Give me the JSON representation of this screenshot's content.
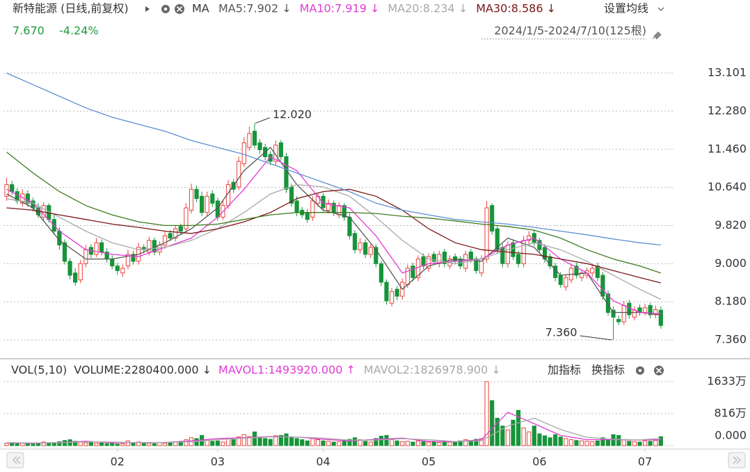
{
  "header": {
    "title": "新特能源 (日线,前复权)",
    "ma_label": "MA",
    "settings": "设置均线",
    "price": "7.670",
    "change": "-4.24%",
    "range": "2024/1/5-2024/7/10(125根)"
  },
  "chart_data": [
    {
      "type": "candlestick",
      "open": [
        10.45,
        10.7,
        10.55,
        10.3,
        10.5,
        10.35,
        10.2,
        10.0,
        10.25,
        9.95,
        9.7,
        9.45,
        9.05,
        8.8,
        8.65,
        9.0,
        9.35,
        9.2,
        9.45,
        9.25,
        9.1,
        8.95,
        8.8,
        8.95,
        9.2,
        9.05,
        9.35,
        9.25,
        9.5,
        9.25,
        9.4,
        9.65,
        9.55,
        9.8,
        9.75,
        10.15,
        10.6,
        10.45,
        10.1,
        10.5,
        10.35,
        10.0,
        10.25,
        10.75,
        10.65,
        11.15,
        11.5,
        11.85,
        11.6,
        11.5,
        11.35,
        11.2,
        11.6,
        11.3,
        10.65,
        10.35,
        10.15,
        10.1,
        10.0,
        10.3,
        10.45,
        10.15,
        10.3,
        10.05,
        10.25,
        10.0,
        9.65,
        9.3,
        9.45,
        9.2,
        9.35,
        9.0,
        8.6,
        8.15,
        8.45,
        8.3,
        8.55,
        8.95,
        8.7,
        9.15,
        8.9,
        9.2,
        9.0,
        9.25,
        8.95,
        9.15,
        9.1,
        8.9,
        9.25,
        9.1,
        8.8,
        9.1,
        10.25,
        9.75,
        9.35,
        9.0,
        9.45,
        9.2,
        9.0,
        9.5,
        9.65,
        9.5,
        9.35,
        9.15,
        8.95,
        8.75,
        8.5,
        8.65,
        8.95,
        8.7,
        8.75,
        8.8,
        8.95,
        8.75,
        8.35,
        8.0,
        7.8,
        7.75,
        8.15,
        7.85,
        8.05,
        7.95,
        8.1,
        7.9,
        8.0
      ],
      "high": [
        10.85,
        10.78,
        10.62,
        10.6,
        10.58,
        10.42,
        10.3,
        10.32,
        10.3,
        10.05,
        9.78,
        9.52,
        9.12,
        8.9,
        9.08,
        9.4,
        9.42,
        9.55,
        9.52,
        9.33,
        9.18,
        9.02,
        8.98,
        9.3,
        9.28,
        9.45,
        9.42,
        9.58,
        9.56,
        9.48,
        9.7,
        9.72,
        9.82,
        9.86,
        10.3,
        10.72,
        10.68,
        10.55,
        10.55,
        10.58,
        10.42,
        10.35,
        10.8,
        10.82,
        11.3,
        11.72,
        11.95,
        12.02,
        11.68,
        11.58,
        11.42,
        11.65,
        11.66,
        11.38,
        10.72,
        10.45,
        10.22,
        10.18,
        10.45,
        10.52,
        10.52,
        10.38,
        10.36,
        10.32,
        10.3,
        10.08,
        9.72,
        9.55,
        9.52,
        9.42,
        9.42,
        9.06,
        8.66,
        8.48,
        8.52,
        8.68,
        8.98,
        9.02,
        9.18,
        9.22,
        9.22,
        9.26,
        9.28,
        9.32,
        9.18,
        9.22,
        9.16,
        9.28,
        9.32,
        9.16,
        9.18,
        10.35,
        10.3,
        9.82,
        9.42,
        9.48,
        9.52,
        9.28,
        9.6,
        9.7,
        9.72,
        9.56,
        9.42,
        9.22,
        9.02,
        8.82,
        8.78,
        8.98,
        9.02,
        8.88,
        8.92,
        8.98,
        9.02,
        8.82,
        8.42,
        8.08,
        7.88,
        8.2,
        8.22,
        8.08,
        8.12,
        8.14,
        8.16,
        8.1,
        8.08
      ],
      "low": [
        10.35,
        10.48,
        10.28,
        10.22,
        10.22,
        10.12,
        9.98,
        9.92,
        9.88,
        9.62,
        9.3,
        8.98,
        8.66,
        8.52,
        8.58,
        8.92,
        9.12,
        9.14,
        9.18,
        9.02,
        8.88,
        8.76,
        8.72,
        8.88,
        8.98,
        8.98,
        9.22,
        9.18,
        9.18,
        9.18,
        9.32,
        9.48,
        9.48,
        9.62,
        9.68,
        10.08,
        10.32,
        10.02,
        10.02,
        10.22,
        9.92,
        9.94,
        10.18,
        10.52,
        10.58,
        11.08,
        11.42,
        11.48,
        11.36,
        11.22,
        11.12,
        11.12,
        11.22,
        10.52,
        10.22,
        10.02,
        9.98,
        9.88,
        9.92,
        10.22,
        10.12,
        10.08,
        10.02,
        9.98,
        9.92,
        9.52,
        9.22,
        9.22,
        9.12,
        9.12,
        8.92,
        8.52,
        8.12,
        8.08,
        8.22,
        8.22,
        8.48,
        8.62,
        8.62,
        8.88,
        8.82,
        8.98,
        8.92,
        8.92,
        8.88,
        8.98,
        8.88,
        8.82,
        9.02,
        8.78,
        8.72,
        9.02,
        9.62,
        9.22,
        8.92,
        8.92,
        9.08,
        8.92,
        8.92,
        9.42,
        9.38,
        9.22,
        9.02,
        8.88,
        8.62,
        8.48,
        8.42,
        8.58,
        8.68,
        8.62,
        8.68,
        8.72,
        8.62,
        8.22,
        7.88,
        7.36,
        7.68,
        7.68,
        7.82,
        7.78,
        7.88,
        7.88,
        7.82,
        7.82,
        7.6
      ],
      "close": [
        10.7,
        10.55,
        10.35,
        10.5,
        10.3,
        10.2,
        10.05,
        10.25,
        9.95,
        9.7,
        9.4,
        9.05,
        8.75,
        8.6,
        9.0,
        9.3,
        9.2,
        9.45,
        9.25,
        9.1,
        8.95,
        8.85,
        8.9,
        9.2,
        9.05,
        9.35,
        9.3,
        9.5,
        9.25,
        9.4,
        9.6,
        9.55,
        9.75,
        9.7,
        10.2,
        10.6,
        10.4,
        10.1,
        10.45,
        10.3,
        10.0,
        10.25,
        10.7,
        10.6,
        11.2,
        11.6,
        11.8,
        11.55,
        11.45,
        11.3,
        11.2,
        11.55,
        11.3,
        10.6,
        10.3,
        10.1,
        10.05,
        9.95,
        10.35,
        10.45,
        10.2,
        10.3,
        10.1,
        10.25,
        10.0,
        9.6,
        9.3,
        9.45,
        9.2,
        9.35,
        9.0,
        8.6,
        8.2,
        8.4,
        8.3,
        8.6,
        8.9,
        8.7,
        9.1,
        8.95,
        9.15,
        9.05,
        9.2,
        9.0,
        9.1,
        9.05,
        8.95,
        9.2,
        9.1,
        8.85,
        9.1,
        10.2,
        9.7,
        9.3,
        9.0,
        9.4,
        9.15,
        9.0,
        9.5,
        9.6,
        9.45,
        9.3,
        9.1,
        8.95,
        8.7,
        8.55,
        8.7,
        8.9,
        8.75,
        8.8,
        8.85,
        8.9,
        8.7,
        8.3,
        7.95,
        7.85,
        7.75,
        8.1,
        7.9,
        8.0,
        7.95,
        8.05,
        7.9,
        8.01,
        7.67
      ],
      "up_color": "#e8413c",
      "down_color": "#17943a",
      "xlim": [
        -0.6,
        126
      ],
      "xticks": [
        {
          "value": 21,
          "label": "02"
        },
        {
          "value": 40,
          "label": "03"
        },
        {
          "value": 60,
          "label": "04"
        },
        {
          "value": 80,
          "label": "05"
        },
        {
          "value": 101,
          "label": "06"
        },
        {
          "value": 121,
          "label": "07"
        }
      ],
      "ylim": [
        7.12,
        13.55
      ],
      "yticks": [
        {
          "value": 7.36,
          "label": "7.360"
        },
        {
          "value": 8.18,
          "label": "8.180"
        },
        {
          "value": 9,
          "label": "9.000"
        },
        {
          "value": 9.82,
          "label": "9.820"
        },
        {
          "value": 10.64,
          "label": "10.640"
        },
        {
          "value": 11.46,
          "label": "11.460"
        },
        {
          "value": 12.28,
          "label": "12.280"
        },
        13.101
      ],
      "grid": true,
      "series": [
        {
          "name": "MA5:7.902 ↓",
          "color": "#555555",
          "x": [
            0,
            5,
            10,
            15,
            20,
            25,
            30,
            35,
            40,
            45,
            50,
            55,
            60,
            65,
            70,
            75,
            80,
            85,
            90,
            95,
            100,
            105,
            110,
            115,
            120,
            124
          ],
          "values": [
            10.5,
            10.2,
            9.5,
            9.1,
            9.1,
            9.2,
            9.45,
            9.75,
            10.2,
            11.0,
            11.5,
            10.7,
            10.15,
            10.0,
            9.3,
            8.45,
            8.95,
            9.1,
            9.05,
            9.55,
            9.35,
            8.75,
            8.8,
            7.95,
            7.95,
            7.902
          ]
        },
        {
          "name": "MA10:7.919 ↓",
          "color": "#e23ad6",
          "x": [
            0,
            5,
            10,
            15,
            20,
            25,
            30,
            35,
            40,
            45,
            50,
            55,
            60,
            65,
            70,
            75,
            80,
            85,
            90,
            95,
            100,
            105,
            110,
            115,
            120,
            124
          ],
          "values": [
            10.6,
            10.3,
            9.7,
            9.3,
            9.2,
            9.15,
            9.35,
            9.55,
            10.0,
            10.6,
            11.3,
            11.0,
            10.3,
            10.2,
            9.6,
            8.8,
            9.0,
            9.05,
            9.1,
            9.4,
            9.55,
            9.1,
            8.8,
            8.2,
            7.95,
            7.919
          ]
        },
        {
          "name": "MA20:8.234 ↓",
          "color": "#a8a8a8",
          "x": [
            0,
            5,
            10,
            15,
            20,
            25,
            30,
            35,
            40,
            45,
            50,
            55,
            60,
            65,
            70,
            75,
            80,
            85,
            90,
            95,
            100,
            105,
            110,
            115,
            120,
            124
          ],
          "values": [
            10.4,
            10.3,
            10.0,
            9.7,
            9.45,
            9.3,
            9.35,
            9.5,
            9.75,
            10.1,
            10.5,
            10.7,
            10.65,
            10.45,
            10.0,
            9.5,
            9.1,
            9.0,
            9.1,
            9.3,
            9.45,
            9.3,
            9.05,
            8.75,
            8.45,
            8.234
          ]
        },
        {
          "name": "MA30:8.586 ↓",
          "color": "#7a1414",
          "x": [
            0,
            5,
            10,
            15,
            20,
            25,
            30,
            35,
            40,
            45,
            50,
            55,
            60,
            65,
            70,
            75,
            80,
            85,
            90,
            95,
            100,
            105,
            110,
            115,
            120,
            124
          ],
          "values": [
            10.2,
            10.15,
            10.05,
            9.95,
            9.85,
            9.78,
            9.7,
            9.65,
            9.75,
            9.9,
            10.1,
            10.4,
            10.55,
            10.6,
            10.45,
            10.15,
            9.75,
            9.45,
            9.3,
            9.25,
            9.2,
            9.1,
            9.0,
            8.85,
            8.7,
            8.586
          ]
        },
        {
          "color": "#3d7a1e",
          "x": [
            0,
            5,
            10,
            15,
            20,
            25,
            30,
            35,
            40,
            45,
            50,
            55,
            60,
            65,
            70,
            75,
            80,
            85,
            90,
            95,
            100,
            105,
            110,
            115,
            120,
            124
          ],
          "values": [
            11.4,
            10.95,
            10.55,
            10.25,
            10.05,
            9.9,
            9.82,
            9.82,
            9.85,
            9.95,
            10.05,
            10.1,
            10.1,
            10.1,
            10.08,
            10.02,
            9.98,
            9.92,
            9.85,
            9.8,
            9.72,
            9.55,
            9.3,
            9.1,
            8.95,
            8.8
          ]
        },
        {
          "color": "#5b8fd0",
          "x": [
            0,
            5,
            10,
            15,
            20,
            25,
            30,
            35,
            40,
            45,
            50,
            55,
            60,
            65,
            70,
            75,
            80,
            85,
            90,
            95,
            100,
            105,
            110,
            115,
            120,
            124
          ],
          "values": [
            13.1,
            12.85,
            12.6,
            12.35,
            12.15,
            12.0,
            11.85,
            11.65,
            11.5,
            11.35,
            11.15,
            10.95,
            10.75,
            10.55,
            10.3,
            10.15,
            10.05,
            9.95,
            9.9,
            9.85,
            9.78,
            9.7,
            9.62,
            9.53,
            9.45,
            9.4
          ]
        }
      ],
      "annotations": [
        {
          "text": "12.020",
          "x": 47,
          "y": 12.02
        },
        {
          "text": "7.360",
          "x": 115,
          "y": 7.36
        }
      ]
    },
    {
      "type": "bar",
      "title": "VOL(5,10)",
      "legend": "VOLUME:2280400.000 ↓",
      "buttons": [
        "加指标",
        "换指标"
      ],
      "values": [
        60,
        80,
        50,
        70,
        60,
        40,
        50,
        90,
        60,
        70,
        100,
        130,
        150,
        110,
        90,
        70,
        80,
        60,
        70,
        50,
        60,
        40,
        50,
        120,
        80,
        90,
        70,
        60,
        50,
        80,
        60,
        70,
        90,
        110,
        150,
        200,
        180,
        260,
        130,
        110,
        120,
        90,
        180,
        150,
        220,
        280,
        230,
        350,
        200,
        180,
        160,
        250,
        260,
        300,
        220,
        180,
        150,
        120,
        180,
        150,
        120,
        110,
        90,
        100,
        130,
        160,
        200,
        150,
        110,
        90,
        180,
        240,
        260,
        150,
        120,
        100,
        110,
        90,
        120,
        100,
        90,
        100,
        80,
        110,
        90,
        100,
        120,
        150,
        130,
        160,
        180,
        1633,
        1150,
        700,
        500,
        400,
        650,
        900,
        450,
        350,
        500,
        300,
        250,
        200,
        280,
        220,
        180,
        150,
        130,
        120,
        110,
        100,
        120,
        200,
        150,
        280,
        260,
        150,
        110,
        100,
        90,
        120,
        110,
        130,
        228.04
      ],
      "ylim": [
        0,
        1633
      ],
      "yticks": [
        {
          "value": 0,
          "label": "0.000"
        },
        {
          "value": 816,
          "label": "816万"
        },
        {
          "value": 1633,
          "label": "1633万"
        }
      ],
      "series": [
        {
          "name": "MAVOL1:1493920.000 ↑",
          "color": "#e23ad6",
          "x": [
            0,
            5,
            10,
            15,
            20,
            25,
            30,
            35,
            40,
            45,
            50,
            55,
            60,
            65,
            70,
            75,
            80,
            85,
            90,
            95,
            100,
            105,
            110,
            115,
            120,
            124
          ],
          "values": [
            70,
            60,
            80,
            110,
            70,
            80,
            80,
            120,
            180,
            200,
            230,
            220,
            160,
            120,
            160,
            190,
            110,
            100,
            150,
            850,
            560,
            260,
            150,
            150,
            140,
            149.392
          ]
        },
        {
          "name": "MAVOL2:1826978.900 ↓",
          "color": "#a8a8a8",
          "x": [
            0,
            5,
            10,
            15,
            20,
            25,
            30,
            35,
            40,
            45,
            50,
            55,
            60,
            65,
            70,
            75,
            80,
            85,
            90,
            95,
            100,
            105,
            110,
            115,
            120,
            124
          ],
          "values": [
            75,
            70,
            75,
            95,
            90,
            75,
            80,
            100,
            150,
            190,
            220,
            220,
            190,
            140,
            140,
            175,
            150,
            105,
            125,
            500,
            700,
            410,
            210,
            160,
            145,
            182.698
          ]
        }
      ]
    }
  ]
}
